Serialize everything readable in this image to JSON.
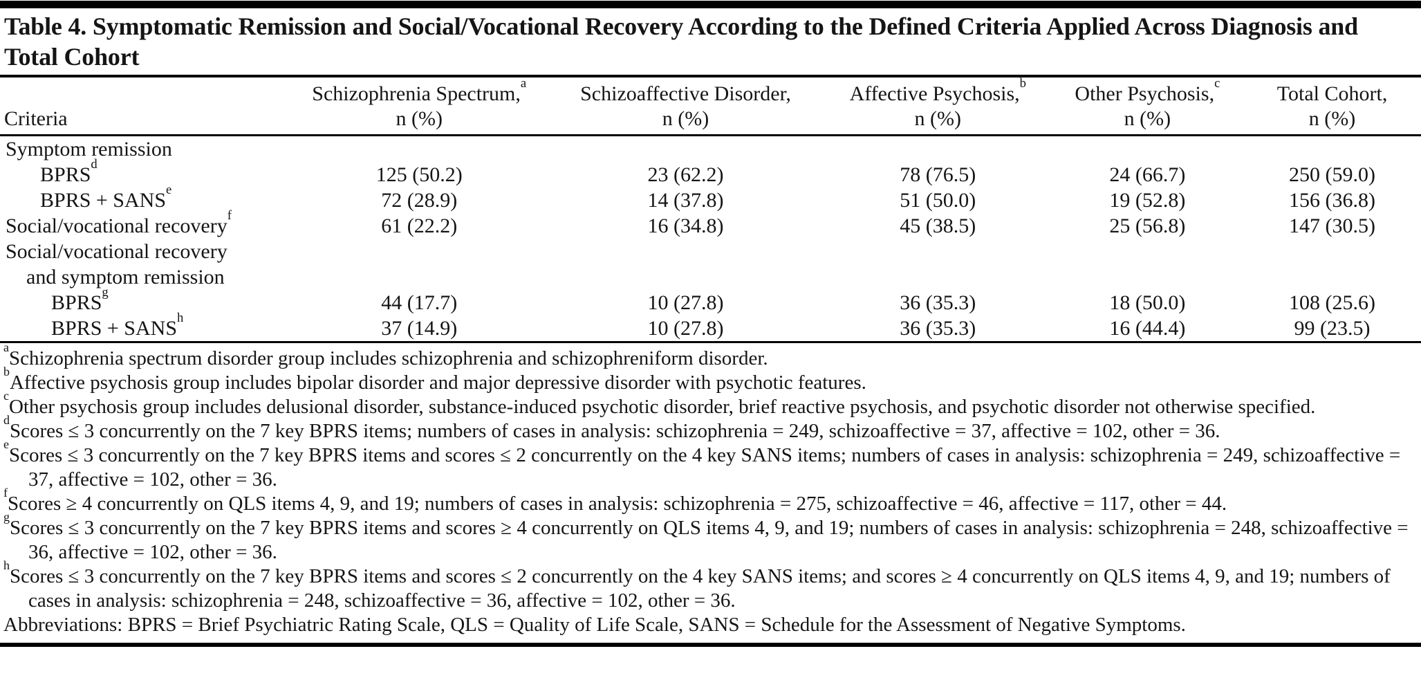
{
  "page": {
    "background": "#ffffff",
    "text_color": "#151515",
    "rule_color": "#000000"
  },
  "title": "Table 4. Symptomatic Remission and Social/Vocational Recovery According to the Defined Criteria Applied Across Diagnosis and Total Cohort",
  "table": {
    "criteria_header": "Criteria",
    "unit_label": "n (%)",
    "columns": [
      {
        "label": "Schizophrenia Spectrum,",
        "marker": "a"
      },
      {
        "label": "Schizoaffective Disorder,",
        "marker": ""
      },
      {
        "label": "Affective Psychosis,",
        "marker": "b"
      },
      {
        "label": "Other Psychosis,",
        "marker": "c"
      },
      {
        "label": "Total Cohort,",
        "marker": ""
      }
    ],
    "rows": [
      {
        "label": "Symptom remission",
        "marker": "",
        "indent": 0,
        "values": [
          "",
          "",
          "",
          "",
          ""
        ]
      },
      {
        "label": "BPRS",
        "marker": "d",
        "indent": 2,
        "values": [
          "125 (50.2)",
          "23 (62.2)",
          "78 (76.5)",
          "24 (66.7)",
          "250 (59.0)"
        ]
      },
      {
        "label": "BPRS + SANS",
        "marker": "e",
        "indent": 2,
        "values": [
          "72 (28.9)",
          "14 (37.8)",
          "51 (50.0)",
          "19 (52.8)",
          "156 (36.8)"
        ]
      },
      {
        "label": "Social/vocational recovery",
        "marker": "f",
        "indent": 0,
        "values": [
          "61 (22.2)",
          "16 (34.8)",
          "45 (38.5)",
          "25 (56.8)",
          "147 (30.5)"
        ]
      },
      {
        "label": "Social/vocational recovery",
        "marker": "",
        "indent": 0,
        "values": [
          "",
          "",
          "",
          "",
          ""
        ]
      },
      {
        "label": "and symptom remission",
        "marker": "",
        "indent": 1,
        "values": [
          "",
          "",
          "",
          "",
          ""
        ]
      },
      {
        "label": "BPRS",
        "marker": "g",
        "indent": 3,
        "values": [
          "44 (17.7)",
          "10 (27.8)",
          "36 (35.3)",
          "18 (50.0)",
          "108 (25.6)"
        ]
      },
      {
        "label": "BPRS + SANS",
        "marker": "h",
        "indent": 3,
        "values": [
          "37 (14.9)",
          "10 (27.8)",
          "36 (35.3)",
          "16 (44.4)",
          "99 (23.5)"
        ]
      }
    ]
  },
  "footnotes": [
    {
      "marker": "a",
      "text": "Schizophrenia spectrum disorder group includes schizophrenia and schizophreniform disorder."
    },
    {
      "marker": "b",
      "text": "Affective psychosis group includes bipolar disorder and major depressive disorder with psychotic features."
    },
    {
      "marker": "c",
      "text": "Other psychosis group includes delusional disorder, substance-induced psychotic disorder, brief reactive psychosis, and psychotic disorder not otherwise specified."
    },
    {
      "marker": "d",
      "text": "Scores ≤ 3 concurrently on the 7 key BPRS items; numbers of cases in analysis: schizophrenia = 249, schizoaffective = 37, affective = 102, other = 36."
    },
    {
      "marker": "e",
      "text": "Scores ≤ 3 concurrently on the 7 key BPRS items and scores ≤ 2 concurrently on the 4 key SANS items; numbers of cases in analysis: schizophrenia = 249, schizoaffective = 37, affective = 102, other = 36."
    },
    {
      "marker": "f",
      "text": "Scores ≥ 4 concurrently on QLS items 4, 9, and 19; numbers of cases in analysis: schizophrenia = 275, schizoaffective = 46, affective = 117, other = 44."
    },
    {
      "marker": "g",
      "text": "Scores ≤ 3 concurrently on the 7 key BPRS items and scores ≥ 4 concurrently on QLS items 4, 9, and 19; numbers of cases in analysis: schizophrenia = 248, schizoaffective = 36, affective = 102, other = 36."
    },
    {
      "marker": "h",
      "text": "Scores ≤ 3 concurrently on the 7 key BPRS items and scores ≤ 2 concurrently on the 4 key SANS items; and scores ≥ 4 concurrently on QLS items 4, 9, and 19; numbers of cases in analysis: schizophrenia = 248, schizoaffective = 36, affective = 102, other = 36."
    },
    {
      "marker": "",
      "text": "Abbreviations: BPRS = Brief Psychiatric Rating Scale, QLS = Quality of Life Scale, SANS = Schedule for the Assessment of Negative Symptoms."
    }
  ]
}
